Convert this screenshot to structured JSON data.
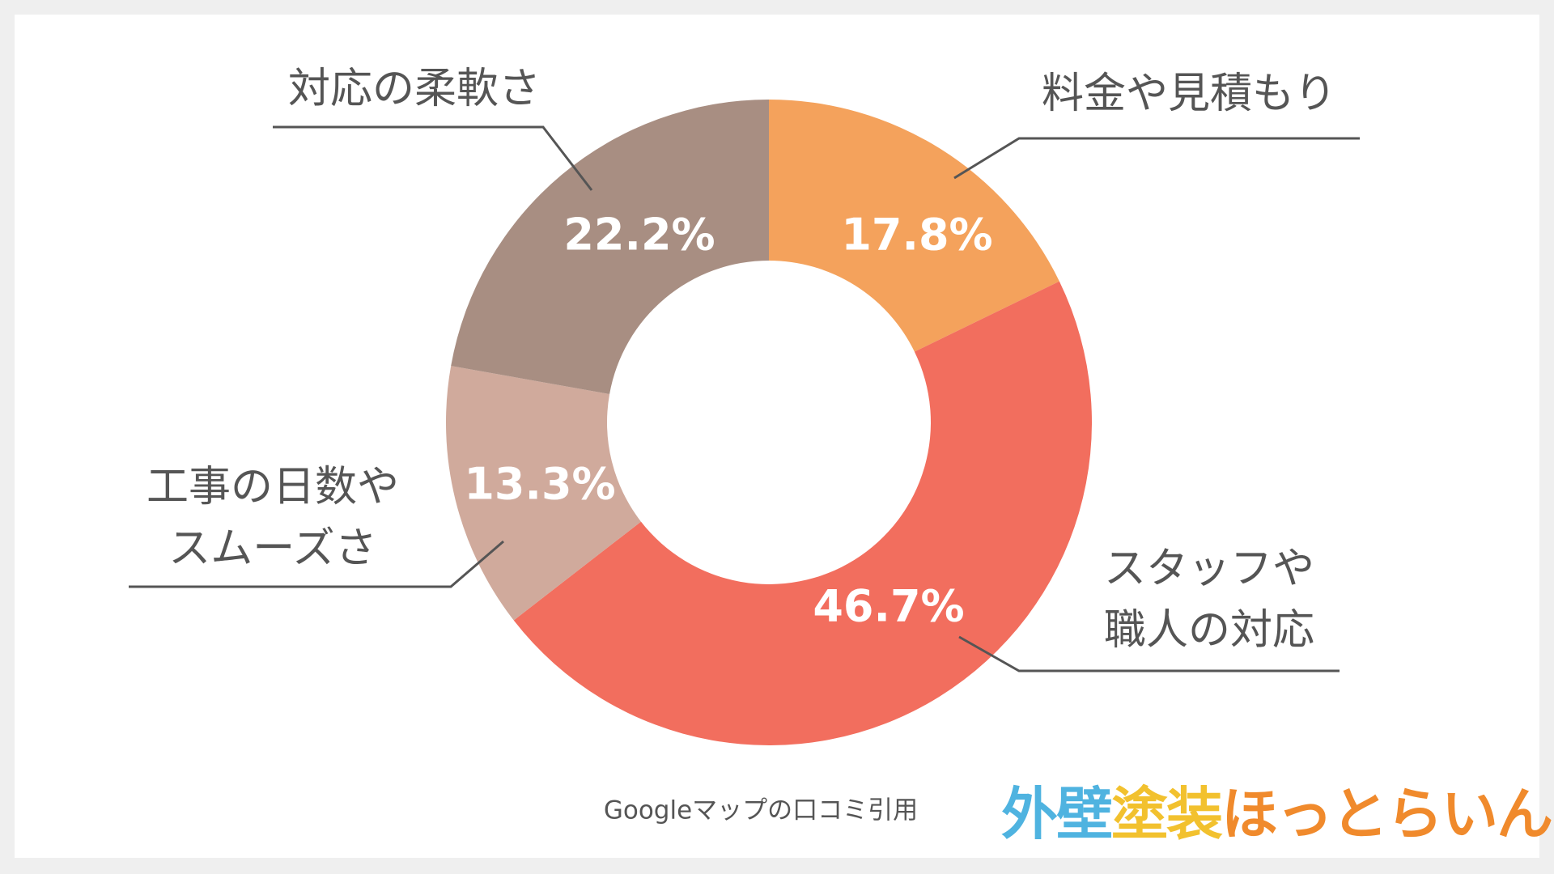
{
  "chart_data": {
    "type": "donut",
    "categories": [
      "料金や見積もり",
      "スタッフや\n職人の対応",
      "工事の日数や\nスムーズさ",
      "対応の柔軟さ"
    ],
    "values": [
      17.8,
      46.7,
      13.3,
      22.2
    ],
    "value_labels": [
      "17.8%",
      "46.7%",
      "13.3%",
      "22.2%"
    ],
    "colors": [
      "#f4a25c",
      "#f26e5e",
      "#d0aa9c",
      "#a88e82"
    ],
    "source": "Googleマップの口コミ引用"
  },
  "logo": [
    {
      "text": "外壁",
      "color": "#4fb3e0"
    },
    {
      "text": "塗装",
      "color": "#f2c12e"
    },
    {
      "text": "ほっとらいん",
      "color": "#f08a2c"
    }
  ]
}
